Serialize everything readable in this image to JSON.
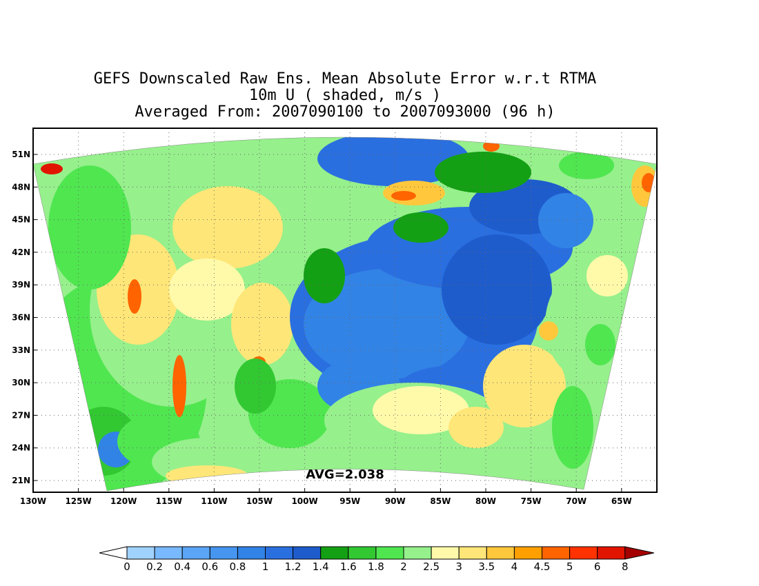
{
  "title": {
    "line1": "GEFS Downscaled Raw Ens. Mean Absolute Error w.r.t RTMA",
    "line2": "10m U ( shaded, m/s )",
    "line3": "Averaged From: 2007090100 to 2007093000 (96 h)"
  },
  "annotation": {
    "avg": "AVG=2.038"
  },
  "axes": {
    "lat_labels": [
      "51N",
      "48N",
      "45N",
      "42N",
      "39N",
      "36N",
      "33N",
      "30N",
      "27N",
      "24N",
      "21N"
    ],
    "lon_labels": [
      "130W",
      "125W",
      "120W",
      "115W",
      "110W",
      "105W",
      "100W",
      "95W",
      "90W",
      "85W",
      "80W",
      "75W",
      "70W",
      "65W"
    ],
    "grid": "dotted"
  },
  "colorbar": {
    "labels": [
      "0",
      "0.2",
      "0.4",
      "0.6",
      "0.8",
      "1",
      "1.2",
      "1.4",
      "1.6",
      "1.8",
      "2",
      "2.5",
      "3",
      "3.5",
      "4",
      "4.5",
      "5",
      "6",
      "8"
    ],
    "colors": [
      "#a0d2ff",
      "#78b9ff",
      "#5aa5f5",
      "#4696f0",
      "#3283e6",
      "#2a6fe0",
      "#1e5ccc",
      "#14a014",
      "#32c832",
      "#50e650",
      "#96f08c",
      "#fffaaa",
      "#ffe678",
      "#ffc83c",
      "#ffa000",
      "#ff6400",
      "#ff3200",
      "#e11400",
      "#a50000"
    ],
    "under_color": "#ffffff",
    "over_color": "#a50000"
  },
  "map": {
    "region": "Continental US",
    "domain_lon": [
      -130,
      -62
    ],
    "domain_lat": [
      19.5,
      53
    ]
  }
}
